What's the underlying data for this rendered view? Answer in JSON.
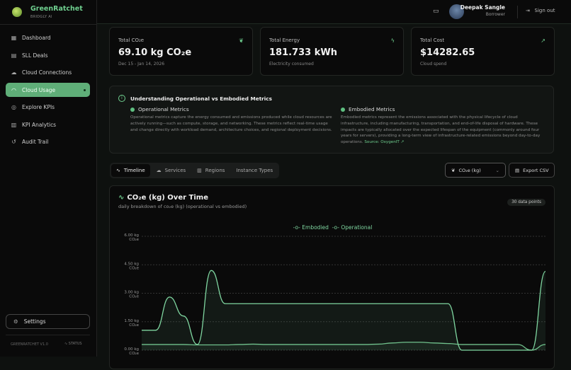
{
  "brand": {
    "name": "GreenRatchet",
    "subtitle": "BRIDGLY AI"
  },
  "sidebar": {
    "items": [
      {
        "label": "Dashboard",
        "icon": "grid-icon"
      },
      {
        "label": "SLL Deals",
        "icon": "document-icon"
      },
      {
        "label": "Cloud Connections",
        "icon": "cloud-icon"
      },
      {
        "label": "Cloud Usage",
        "icon": "gauge-icon",
        "active": true
      },
      {
        "label": "Explore KPIs",
        "icon": "target-icon"
      },
      {
        "label": "KPI Analytics",
        "icon": "bar-chart-icon"
      },
      {
        "label": "Audit Trail",
        "icon": "history-icon"
      }
    ],
    "settings": "Settings",
    "version": "GREENRATCHET V1.0",
    "status": "STATUS"
  },
  "header": {
    "user_name": "Deepak Sangle",
    "user_role": "Borrower",
    "sign_out": "Sign out"
  },
  "kpis": [
    {
      "label": "Total CO₂e",
      "value": "69.10 kg CO₂e",
      "sub": "Dec 15 - Jan 14, 2026",
      "icon": "leaf-icon"
    },
    {
      "label": "Total Energy",
      "value": "181.733 kWh",
      "sub": "Electricity consumed",
      "icon": "lightning-icon"
    },
    {
      "label": "Total Cost",
      "value": "$14282.65",
      "sub": "Cloud spend",
      "icon": "trending-up-icon"
    }
  ],
  "info": {
    "title": "Understanding Operational vs Embodied Metrics",
    "operational_title": "Operational Metrics",
    "operational_text": "Operational metrics capture the energy consumed and emissions produced while cloud resources are actively running—such as compute, storage, and networking. These metrics reflect real-time usage and change directly with workload demand, architecture choices, and regional deployment decisions.",
    "embodied_title": "Embodied Metrics",
    "embodied_text": "Embodied metrics represent the emissions associated with the physical lifecycle of cloud infrastructure, including manufacturing, transportation, and end-of-life disposal of hardware. These impacts are typically allocated over the expected lifespan of the equipment (commonly around four years for servers), providing a long-term view of infrastructure-related emissions beyond day-to-day operations.",
    "source_link": "Source: OxygenIT"
  },
  "tabs": [
    "Timeline",
    "Services",
    "Regions",
    "Instance Types"
  ],
  "metric_select": "CO₂e (kg)",
  "export_label": "Export CSV",
  "chart_card": {
    "title": "CO₂e (kg) Over Time",
    "subtitle": "daily breakdown of co₂e (kg) (operational vs embodied)",
    "badge": "30 data points"
  },
  "colors": {
    "accent": "#5fae78",
    "operational": "#7fd6a0",
    "embodied": "#6fbf8a"
  },
  "chart_data": {
    "type": "area",
    "ylim": [
      0,
      6
    ],
    "yticks": [
      "0.00 kg CO₂e",
      "1.50 kg CO₂e",
      "3.00 kg CO₂e",
      "4.50 kg CO₂e",
      "6.00 kg CO₂e"
    ],
    "ytick_values": [
      0,
      1.5,
      3,
      4.5,
      6
    ],
    "grid": true,
    "legend": "top-center",
    "series": [
      {
        "name": "Embodied",
        "values": [
          0.3,
          0.3,
          0.3,
          0.3,
          0.28,
          0.28,
          0.28,
          0.3,
          0.32,
          0.3,
          0.3,
          0.3,
          0.3,
          0.3,
          0.3,
          0.3,
          0.3,
          0.32,
          0.38,
          0.42,
          0.42,
          0.38,
          0.35,
          0.3,
          0.3,
          0.3,
          0.3,
          0.3,
          0.0,
          0.3
        ]
      },
      {
        "name": "Operational",
        "values": [
          1.05,
          1.05,
          2.8,
          1.8,
          0.3,
          4.2,
          2.45,
          2.45,
          2.45,
          2.45,
          2.45,
          2.45,
          2.45,
          2.45,
          2.45,
          2.45,
          2.45,
          2.45,
          2.45,
          2.45,
          2.45,
          2.45,
          2.45,
          0.0,
          0.0,
          0.0,
          0.0,
          0.0,
          0.0,
          4.15
        ]
      }
    ]
  }
}
